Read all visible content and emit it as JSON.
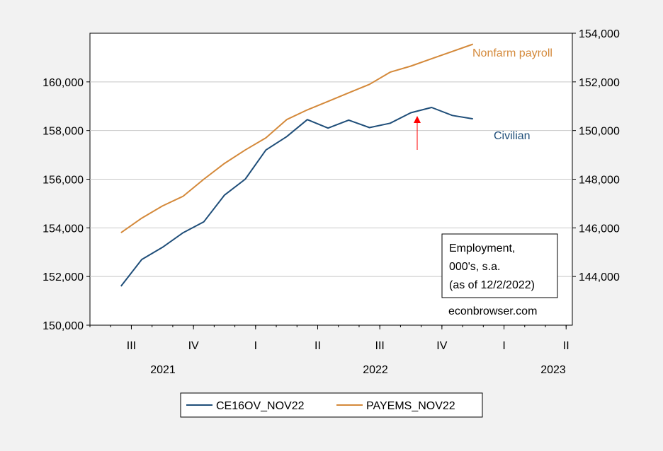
{
  "chart_data": {
    "type": "line",
    "x_axis": {
      "tick_labels": [
        "III",
        "IV",
        "I",
        "II",
        "III",
        "IV",
        "I",
        "II"
      ],
      "year_labels": [
        "2021",
        "2022",
        "2023"
      ]
    },
    "y_left": {
      "ylim": [
        150000,
        162000
      ],
      "tick_labels": [
        "150,000",
        "152,000",
        "154,000",
        "156,000",
        "158,000",
        "160,000"
      ],
      "tick_values": [
        150000,
        152000,
        154000,
        156000,
        158000,
        160000
      ]
    },
    "y_right": {
      "ylim": [
        142000,
        154000
      ],
      "tick_labels": [
        "144,000",
        "146,000",
        "148,000",
        "150,000",
        "152,000",
        "154,000"
      ],
      "tick_values": [
        144000,
        146000,
        148000,
        150000,
        152000,
        154000
      ]
    },
    "x": [
      "2021-06",
      "2021-07",
      "2021-08",
      "2021-09",
      "2021-10",
      "2021-11",
      "2021-12",
      "2022-01",
      "2022-02",
      "2022-03",
      "2022-04",
      "2022-05",
      "2022-06",
      "2022-07",
      "2022-08",
      "2022-09",
      "2022-10",
      "2022-11"
    ],
    "series": [
      {
        "name": "CE16OV_NOV22",
        "axis": "left",
        "color": "#1f4e79",
        "values": [
          151600,
          152700,
          153200,
          153800,
          154250,
          155350,
          156000,
          157200,
          157750,
          158450,
          158100,
          158430,
          158120,
          158300,
          158730,
          158950,
          158620,
          158480
        ]
      },
      {
        "name": "PAYEMS_NOV22",
        "axis": "right",
        "color": "#d4893a",
        "values": [
          145800,
          146400,
          146900,
          147300,
          148000,
          148650,
          149200,
          149700,
          150450,
          150850,
          151200,
          151550,
          151900,
          152400,
          152650,
          152950,
          153250,
          153550
        ]
      }
    ],
    "annotations": {
      "nonfarm_label": "Nonfarm payroll",
      "civilian_label": "Civilian",
      "box_line1": "Employment,",
      "box_line2": "000's, s.a.",
      "box_line3": "(as of 12/2/2022)",
      "source": "econbrowser.com",
      "arrow_at": "2022-09",
      "arrow_color": "#ff0000"
    },
    "legend_placement": "bottom-center",
    "grid": "horizontal"
  }
}
